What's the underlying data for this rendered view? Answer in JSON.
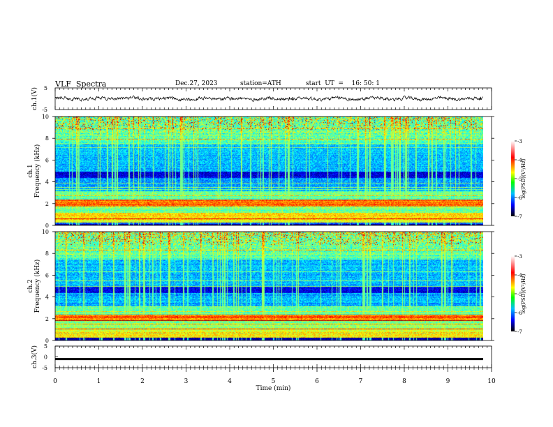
{
  "header": {
    "title": "VLF  Spectra",
    "date": "Dec.27, 2023",
    "station": "station=ATH",
    "start": "start  UT  =    16: 50: 1"
  },
  "chart_data": [
    {
      "type": "line",
      "panel": "ch1-waveform",
      "ylabel": "ch.1(V)",
      "ylim": [
        -5,
        5
      ],
      "yticks": [
        "5",
        "-5"
      ],
      "xlim": [
        0,
        10
      ],
      "data_end": 9.8,
      "description_values": {
        "mean": 0,
        "approx_amplitude": 1
      }
    },
    {
      "type": "heatmap",
      "panel": "ch1-spectrogram",
      "ylabel": "ch.1\nFrequency (kHz)",
      "ylim": [
        0,
        10
      ],
      "yticks": [
        "0",
        "2",
        "4",
        "6",
        "8",
        "10"
      ],
      "xlim": [
        0,
        10
      ],
      "colorbar": {
        "label": "log(PSD)(V²/Hz)",
        "ticks": [
          "-3",
          "-4",
          "-5",
          "-6",
          "-7"
        ],
        "range": [
          -7,
          -3
        ]
      }
    },
    {
      "type": "heatmap",
      "panel": "ch2-spectrogram",
      "ylabel": "ch.2\nFrequency (kHz)",
      "ylim": [
        0,
        10
      ],
      "yticks": [
        "0",
        "2",
        "4",
        "6",
        "8",
        "10"
      ],
      "xlim": [
        0,
        10
      ],
      "colorbar": {
        "label": "log(PSD)(V²/Hz)",
        "ticks": [
          "-3",
          "-4",
          "-5",
          "-6",
          "-7"
        ],
        "range": [
          -7,
          -3
        ]
      }
    },
    {
      "type": "line",
      "panel": "ch3-waveform",
      "ylabel": "ch.3(V)",
      "ylim": [
        -5,
        5
      ],
      "yticks": [
        "5",
        "0",
        "-5"
      ],
      "xlim": [
        0,
        10
      ],
      "value": -1
    }
  ],
  "xaxis": {
    "label": "Time  (min)",
    "ticks": [
      "0",
      "1",
      "2",
      "3",
      "4",
      "5",
      "6",
      "7",
      "8",
      "9",
      "10"
    ]
  },
  "colors": {
    "waveform": "#000000",
    "spectrogram_low": "#00008b",
    "spectrogram_high": "#ff0000"
  }
}
